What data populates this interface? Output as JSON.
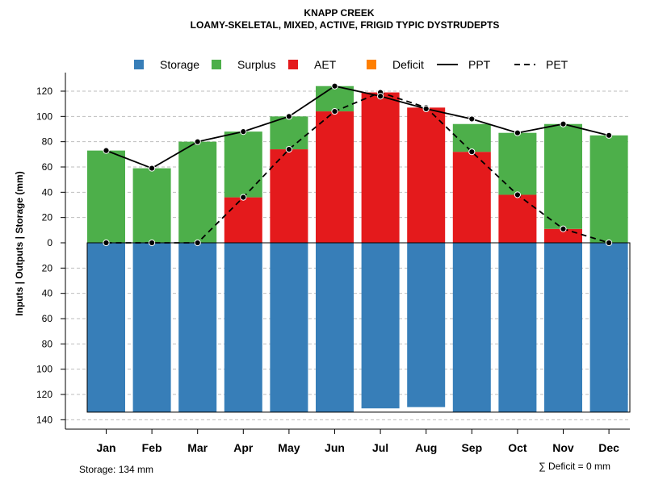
{
  "colors": {
    "storage": "#377EB8",
    "surplus": "#4DAF4A",
    "aet": "#E41A1C",
    "deficit": "#FF7F00",
    "line": "#000000",
    "grid": "#BEBEBE"
  },
  "chart_data": {
    "type": "bar",
    "title": "KNAPP CREEK",
    "subtitle": "LOAMY-SKELETAL, MIXED, ACTIVE, FRIGID TYPIC DYSTRUDEPTS",
    "ylabel": "Inputs | Outputs | Storage    (mm)",
    "ylim": [
      -140,
      130
    ],
    "yticks": [
      120,
      100,
      80,
      60,
      40,
      20,
      0,
      -20,
      -40,
      -60,
      -80,
      -100,
      -120,
      -140
    ],
    "ytick_labels": [
      "120",
      "100",
      "80",
      "60",
      "40",
      "20",
      "0",
      "20",
      "40",
      "60",
      "80",
      "100",
      "120",
      "140"
    ],
    "grid": true,
    "legend_position": "top",
    "legend": [
      "Storage",
      "Surplus",
      "AET",
      "Deficit",
      "PPT",
      "PET"
    ],
    "categories": [
      "Jan",
      "Feb",
      "Mar",
      "Apr",
      "May",
      "Jun",
      "Jul",
      "Aug",
      "Sep",
      "Oct",
      "Nov",
      "Dec"
    ],
    "series": [
      {
        "name": "Storage",
        "values": [
          134,
          134,
          134,
          134,
          134,
          134,
          131,
          130,
          134,
          134,
          134,
          134
        ]
      },
      {
        "name": "AET",
        "values": [
          0,
          0,
          0,
          36,
          74,
          104,
          119,
          107,
          72,
          38,
          11,
          0
        ]
      },
      {
        "name": "Surplus",
        "values": [
          73,
          59,
          80,
          52,
          26,
          20,
          0,
          0,
          22,
          49,
          83,
          85
        ]
      },
      {
        "name": "Deficit",
        "values": [
          0,
          0,
          0,
          0,
          0,
          0,
          0,
          0,
          0,
          0,
          0,
          0
        ]
      },
      {
        "name": "PPT",
        "values": [
          73,
          59,
          80,
          88,
          100,
          124,
          116,
          106,
          98,
          87,
          94,
          85
        ]
      },
      {
        "name": "PET",
        "values": [
          0,
          0,
          0,
          36,
          74,
          104,
          119,
          107,
          72,
          38,
          11,
          0
        ]
      }
    ],
    "storage_note": "Storage: 134 mm",
    "deficit_note": "∑ Deficit = 0 mm"
  }
}
